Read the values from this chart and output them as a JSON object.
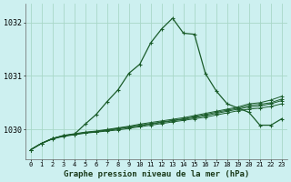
{
  "title": "Graphe pression niveau de la mer (hPa)",
  "bg_color": "#cdf0f0",
  "grid_color": "#a8d8c8",
  "line_color": "#1a5c2a",
  "xlim": [
    -0.5,
    23.5
  ],
  "ylim": [
    1029.45,
    1032.35
  ],
  "yticks": [
    1030,
    1031,
    1032
  ],
  "ytick_labels": [
    "1030",
    "1031",
    "1032"
  ],
  "xtick_labels": [
    "0",
    "1",
    "2",
    "3",
    "4",
    "5",
    "6",
    "7",
    "8",
    "9",
    "10",
    "11",
    "12",
    "13",
    "14",
    "15",
    "16",
    "17",
    "18",
    "19",
    "20",
    "21",
    "22",
    "23"
  ],
  "flat_series": [
    [
      1029.62,
      1029.74,
      1029.82,
      1029.87,
      1029.9,
      1029.93,
      1029.95,
      1029.97,
      1029.99,
      1030.02,
      1030.05,
      1030.08,
      1030.11,
      1030.14,
      1030.17,
      1030.2,
      1030.23,
      1030.27,
      1030.31,
      1030.35,
      1030.38,
      1030.4,
      1030.43,
      1030.48
    ],
    [
      1029.62,
      1029.74,
      1029.83,
      1029.88,
      1029.91,
      1029.94,
      1029.96,
      1029.98,
      1030.01,
      1030.04,
      1030.07,
      1030.1,
      1030.13,
      1030.16,
      1030.19,
      1030.22,
      1030.26,
      1030.3,
      1030.34,
      1030.38,
      1030.42,
      1030.44,
      1030.48,
      1030.54
    ],
    [
      1029.62,
      1029.74,
      1029.83,
      1029.88,
      1029.91,
      1029.94,
      1029.96,
      1029.99,
      1030.02,
      1030.05,
      1030.08,
      1030.11,
      1030.14,
      1030.17,
      1030.2,
      1030.24,
      1030.28,
      1030.32,
      1030.36,
      1030.4,
      1030.45,
      1030.47,
      1030.5,
      1030.57
    ],
    [
      1029.62,
      1029.74,
      1029.83,
      1029.89,
      1029.92,
      1029.95,
      1029.97,
      1030.0,
      1030.03,
      1030.06,
      1030.1,
      1030.13,
      1030.16,
      1030.19,
      1030.22,
      1030.26,
      1030.3,
      1030.34,
      1030.38,
      1030.42,
      1030.48,
      1030.5,
      1030.55,
      1030.62
    ]
  ],
  "main_series": [
    1029.62,
    1029.74,
    1029.83,
    1029.88,
    1029.91,
    1030.1,
    1030.28,
    1030.52,
    1030.74,
    1031.05,
    1031.22,
    1031.62,
    1031.88,
    1032.08,
    1031.8,
    1031.78,
    1031.05,
    1030.72,
    1030.48,
    1030.4,
    1030.32,
    1030.08,
    1030.08,
    1030.2
  ]
}
